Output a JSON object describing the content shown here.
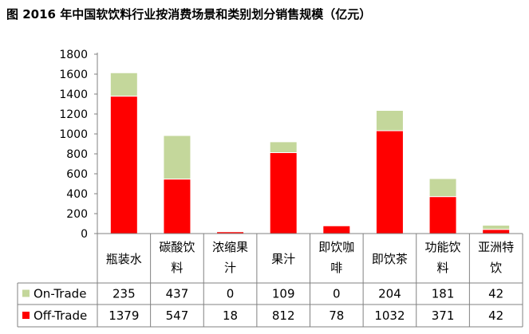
{
  "title": "图  2016 年中国软饮料行业按消费场景和类别划分销售规模（亿元）",
  "chart_data": {
    "type": "bar",
    "stacked": true,
    "categories": [
      [
        "瓶装水"
      ],
      [
        "碳酸饮",
        "料"
      ],
      [
        "浓缩果",
        "汁"
      ],
      [
        "果汁"
      ],
      [
        "即饮咖",
        "啡"
      ],
      [
        "即饮茶"
      ],
      [
        "功能饮",
        "料"
      ],
      [
        "亚洲特",
        "饮"
      ]
    ],
    "series": [
      {
        "name": "Off-Trade",
        "color": "#FF0000",
        "values": [
          1379,
          547,
          18,
          812,
          78,
          1032,
          371,
          42
        ]
      },
      {
        "name": "On-Trade",
        "color": "#C4D79B",
        "values": [
          235,
          437,
          0,
          109,
          0,
          204,
          181,
          42
        ]
      }
    ],
    "table_rows": [
      {
        "name": "On-Trade",
        "values": [
          "235",
          "437",
          "0",
          "109",
          "0",
          "204",
          "181",
          "42"
        ]
      },
      {
        "name": "Off-Trade",
        "values": [
          "1379",
          "547",
          "18",
          "812",
          "78",
          "1032",
          "371",
          "42"
        ]
      }
    ],
    "yticks": [
      "0",
      "200",
      "400",
      "600",
      "800",
      "1000",
      "1200",
      "1400",
      "1600",
      "1800"
    ],
    "ylim": [
      0,
      1800
    ],
    "grid": false,
    "legend_placement": "data-table"
  }
}
